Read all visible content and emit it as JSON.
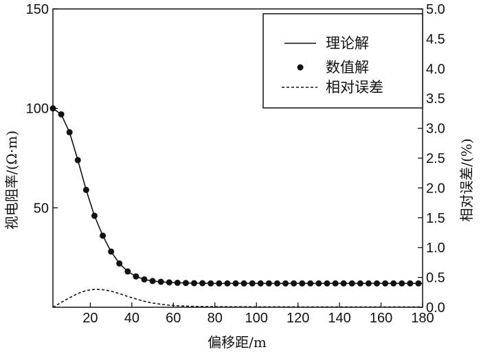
{
  "chart_data": {
    "type": "line",
    "xlabel": "偏移距/m",
    "ylabel": "视电阻率/(Ω·m)",
    "y2label": "相对误差/(%)",
    "xlim": [
      2,
      180
    ],
    "ylim": [
      0,
      150
    ],
    "y2lim": [
      0,
      5.0
    ],
    "x_ticks": [
      20,
      40,
      60,
      80,
      100,
      120,
      140,
      160,
      180
    ],
    "y_ticks": [
      50,
      100,
      150
    ],
    "y2_ticks": [
      "0.0",
      "0.5",
      "1.0",
      "1.5",
      "2.0",
      "2.5",
      "3.0",
      "3.5",
      "4.0",
      "4.5",
      "5.0"
    ],
    "grid": false,
    "legend_position": "top-right",
    "series": [
      {
        "name": "理论解",
        "style": "solid",
        "axis": "left",
        "x": [
          2,
          6,
          10,
          14,
          18,
          22,
          26,
          30,
          34,
          38,
          42,
          46,
          50,
          54,
          58,
          62,
          66,
          70,
          74,
          78,
          82,
          86,
          90,
          94,
          98,
          102,
          106,
          110,
          114,
          118,
          122,
          126,
          130,
          134,
          138,
          142,
          146,
          150,
          154,
          158,
          162,
          166,
          170,
          174,
          178,
          180
        ],
        "y": [
          100,
          97,
          88,
          74,
          59,
          46,
          36,
          28,
          22,
          18,
          15.5,
          14,
          13.2,
          12.8,
          12.5,
          12.3,
          12.2,
          12.1,
          12.1,
          12.0,
          12.0,
          12.0,
          12.0,
          12.0,
          12.0,
          12.0,
          12.0,
          12.0,
          12.0,
          12.0,
          12.0,
          12.0,
          12.0,
          12.0,
          12.0,
          12.0,
          12.0,
          12.0,
          12.0,
          12.0,
          12.0,
          12.0,
          12.0,
          12.0,
          12.0,
          12.0
        ]
      },
      {
        "name": "数值解",
        "style": "marker",
        "axis": "left",
        "x": [
          2,
          6,
          10,
          14,
          18,
          22,
          26,
          30,
          34,
          38,
          42,
          46,
          50,
          54,
          58,
          62,
          66,
          70,
          74,
          78,
          82,
          86,
          90,
          94,
          98,
          102,
          106,
          110,
          114,
          118,
          122,
          126,
          130,
          134,
          138,
          142,
          146,
          150,
          154,
          158,
          162,
          166,
          170,
          174,
          178
        ],
        "y": [
          100,
          97,
          88,
          74,
          59,
          46,
          36,
          28,
          22,
          18,
          15.5,
          14,
          13.2,
          12.8,
          12.5,
          12.3,
          12.2,
          12.1,
          12.1,
          12.0,
          12.0,
          12.0,
          12.0,
          12.0,
          12.0,
          12.0,
          12.0,
          12.0,
          12.0,
          12.0,
          12.0,
          12.0,
          12.0,
          12.0,
          12.0,
          12.0,
          12.0,
          12.0,
          12.0,
          12.0,
          12.0,
          12.0,
          12.0,
          12.0,
          12.0
        ]
      },
      {
        "name": "相对误差",
        "style": "dashed",
        "axis": "right",
        "x": [
          2,
          6,
          10,
          14,
          18,
          22,
          26,
          30,
          34,
          38,
          42,
          46,
          50,
          54,
          58,
          62,
          66,
          70,
          74,
          80,
          90,
          100,
          120,
          140,
          160,
          180
        ],
        "y": [
          0.0,
          0.08,
          0.16,
          0.23,
          0.28,
          0.3,
          0.295,
          0.27,
          0.23,
          0.18,
          0.14,
          0.1,
          0.07,
          0.05,
          0.035,
          0.025,
          0.02,
          0.015,
          0.012,
          0.01,
          0.008,
          0.007,
          0.006,
          0.005,
          0.005,
          0.005
        ]
      }
    ]
  }
}
